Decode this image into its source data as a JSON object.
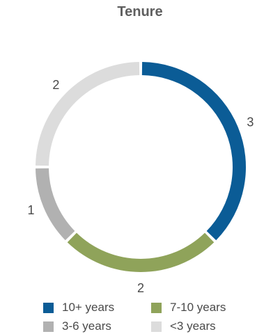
{
  "chart_data": {
    "type": "pie",
    "title": "Tenure",
    "categories": [
      "10+ years",
      "7-10 years",
      "3-6 years",
      "<3 years"
    ],
    "values": [
      3,
      2,
      1,
      2
    ],
    "colors": [
      "#0b5c96",
      "#8fa35a",
      "#b1b1b1",
      "#dcdcdc"
    ],
    "donut": true,
    "legend_position": "bottom"
  }
}
